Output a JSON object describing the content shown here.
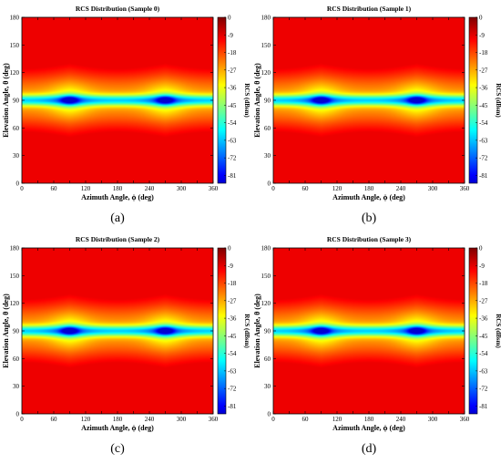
{
  "chart_data": [
    {
      "type": "heatmap",
      "panel_label": "(a)",
      "title": "RCS Distribution (Sample 0)",
      "xlabel": "Azimuth Angle, ϕ (deg)",
      "ylabel": "Elevation Angle, θ (deg)",
      "colorbar_label": "RCS (dBsm)",
      "xlim": [
        0,
        360
      ],
      "ylim": [
        0,
        180
      ],
      "xticks": [
        0,
        30,
        60,
        90,
        120,
        150,
        180,
        210,
        240,
        270,
        300,
        330,
        360
      ],
      "yticks": [
        0,
        30,
        60,
        90,
        120,
        150,
        180
      ],
      "color_range": [
        -85,
        0
      ],
      "colorbar_ticks": [
        0,
        -9,
        -18,
        -27,
        -36,
        -45,
        -54,
        -63,
        -72,
        -81
      ],
      "features": {
        "edge_level": [
          -6,
          -3
        ],
        "band_center": 90,
        "band_level": -45,
        "minima": [
          {
            "x": 90,
            "y": 90,
            "value": -80
          },
          {
            "x": 270,
            "y": 90,
            "value": -80
          }
        ]
      }
    },
    {
      "type": "heatmap",
      "panel_label": "(b)",
      "title": "RCS Distribution (Sample 1)",
      "xlabel": "Azimuth Angle, ϕ (deg)",
      "ylabel": "Elevation Angle, θ (deg)",
      "colorbar_label": "RCS (dBsm)",
      "xlim": [
        0,
        360
      ],
      "ylim": [
        0,
        180
      ],
      "xticks": [
        0,
        30,
        60,
        90,
        120,
        150,
        180,
        210,
        240,
        270,
        300,
        330,
        360
      ],
      "yticks": [
        0,
        30,
        60,
        90,
        120,
        150,
        180
      ],
      "color_range": [
        -85,
        0
      ],
      "colorbar_ticks": [
        0,
        -9,
        -18,
        -27,
        -36,
        -45,
        -54,
        -63,
        -72,
        -81
      ],
      "features": {
        "edge_level": [
          -6,
          -3
        ],
        "band_center": 90,
        "band_level": -45,
        "minima": [
          {
            "x": 90,
            "y": 90,
            "value": -80
          },
          {
            "x": 270,
            "y": 90,
            "value": -80
          }
        ]
      }
    },
    {
      "type": "heatmap",
      "panel_label": "(c)",
      "title": "RCS Distribution (Sample 2)",
      "xlabel": "Azimuth Angle, ϕ (deg)",
      "ylabel": "Elevation Angle, θ (deg)",
      "colorbar_label": "RCS (dBsm)",
      "xlim": [
        0,
        360
      ],
      "ylim": [
        0,
        180
      ],
      "xticks": [
        0,
        30,
        60,
        90,
        120,
        150,
        180,
        210,
        240,
        270,
        300,
        330,
        360
      ],
      "yticks": [
        0,
        30,
        60,
        90,
        120,
        150,
        180
      ],
      "color_range": [
        -85,
        0
      ],
      "colorbar_ticks": [
        0,
        -9,
        -18,
        -27,
        -36,
        -45,
        -54,
        -63,
        -72,
        -81
      ],
      "features": {
        "edge_level": [
          -6,
          -3
        ],
        "band_center": 90,
        "band_level": -45,
        "minima": [
          {
            "x": 90,
            "y": 90,
            "value": -80
          },
          {
            "x": 270,
            "y": 90,
            "value": -80
          }
        ]
      }
    },
    {
      "type": "heatmap",
      "panel_label": "(d)",
      "title": "RCS Distribution (Sample 3)",
      "xlabel": "Azimuth Angle, ϕ (deg)",
      "ylabel": "Elevation Angle, θ (deg)",
      "colorbar_label": "RCS (dBsm)",
      "xlim": [
        0,
        360
      ],
      "ylim": [
        0,
        180
      ],
      "xticks": [
        0,
        30,
        60,
        90,
        120,
        150,
        180,
        210,
        240,
        270,
        300,
        330,
        360
      ],
      "yticks": [
        0,
        30,
        60,
        90,
        120,
        150,
        180
      ],
      "color_range": [
        -85,
        0
      ],
      "colorbar_ticks": [
        0,
        -9,
        -18,
        -27,
        -36,
        -45,
        -54,
        -63,
        -72,
        -81
      ],
      "features": {
        "edge_level": [
          -6,
          -3
        ],
        "band_center": 90,
        "band_level": -45,
        "minima": [
          {
            "x": 90,
            "y": 90,
            "value": -80
          },
          {
            "x": 270,
            "y": 90,
            "value": -80
          }
        ]
      }
    }
  ]
}
